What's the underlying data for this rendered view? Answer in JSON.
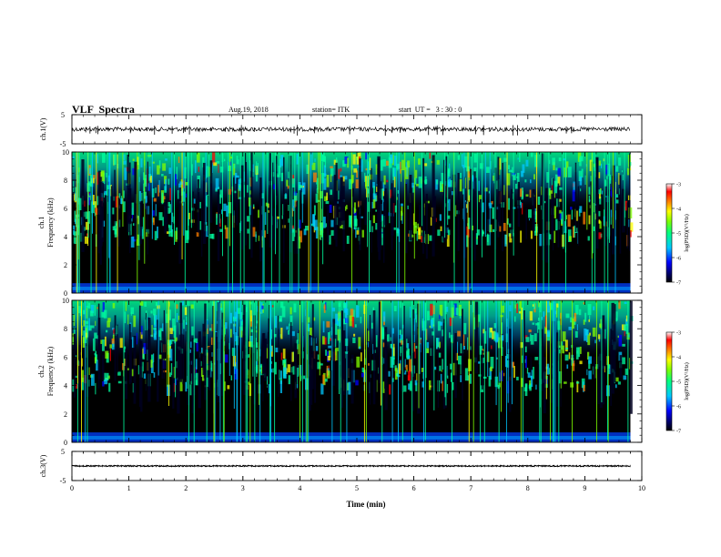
{
  "header": {
    "title": "VLF  Spectra",
    "date": "Aug.19, 2018",
    "station": "station= ITK",
    "start_ut": "start  UT =   3 : 30 : 0"
  },
  "colors": {
    "colormap": [
      "#000000",
      "#000080",
      "#0000ff",
      "#00c8ff",
      "#00ffa0",
      "#80ff00",
      "#ffff00",
      "#ff8000",
      "#ff0000",
      "#c80000"
    ],
    "waveform": "#000000"
  },
  "chart_data": [
    {
      "type": "line",
      "name": "ch1-waveform",
      "ylabel": "ch.1(V)",
      "ylim": [
        -5,
        5
      ],
      "yticks": [
        "5",
        "-5"
      ],
      "xlim": [
        0,
        10
      ],
      "baseline": 0,
      "note_values": "noise trace near 0 V with small spikes"
    },
    {
      "type": "heatmap",
      "name": "ch1-spectrogram",
      "ylabel": "ch.1\nFrequency  (kHz)",
      "ylim": [
        0,
        10
      ],
      "yticks": [
        "0",
        "2",
        "4",
        "6",
        "8",
        "10"
      ],
      "xlim": [
        0,
        10
      ],
      "data_end_min": 9.8,
      "colorbar": {
        "label": "log(PSD)(V²/Hz)",
        "ticks": [
          "-3",
          "-4",
          "-5",
          "-6",
          "-7"
        ],
        "range": [
          -7,
          -3
        ]
      }
    },
    {
      "type": "heatmap",
      "name": "ch2-spectrogram",
      "ylabel": "ch.2\nFrequency  (kHz)",
      "ylim": [
        0,
        10
      ],
      "yticks": [
        "0",
        "2",
        "4",
        "6",
        "8",
        "10"
      ],
      "xlim": [
        0,
        10
      ],
      "data_end_min": 9.8,
      "colorbar": {
        "label": "log(PSD)(V²/Hz)",
        "ticks": [
          "-3",
          "-4",
          "-5",
          "-6",
          "-7"
        ],
        "range": [
          -7,
          -3
        ]
      }
    },
    {
      "type": "line",
      "name": "ch3-waveform",
      "ylabel": "ch.3(V)",
      "ylim": [
        -5,
        5
      ],
      "yticks": [
        "5",
        "-5"
      ],
      "xlim": [
        0,
        10
      ],
      "baseline": 0
    }
  ],
  "xaxis": {
    "label": "Time  (min)",
    "ticks": [
      "0",
      "1",
      "2",
      "3",
      "4",
      "5",
      "6",
      "7",
      "8",
      "9",
      "10"
    ]
  }
}
